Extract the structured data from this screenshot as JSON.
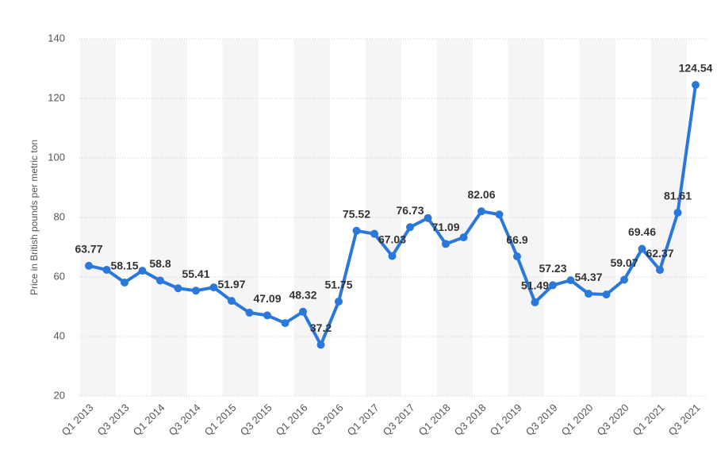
{
  "chart_data": {
    "type": "line",
    "y_label": "Price in British pounds per metric ton",
    "categories": [
      "Q1 2013",
      null,
      "Q3 2013",
      null,
      "Q1 2014",
      null,
      "Q3 2014",
      null,
      "Q1 2015",
      null,
      "Q3 2015",
      null,
      "Q1 2016",
      null,
      "Q3 2016",
      null,
      "Q1 2017",
      null,
      "Q3 2017",
      null,
      "Q1 2018",
      null,
      "Q3 2018",
      null,
      "Q1 2019",
      null,
      "Q3 2019",
      null,
      "Q1 2020",
      null,
      "Q3 2020",
      null,
      "Q1 2021",
      null,
      "Q3 2021"
    ],
    "series": [
      {
        "color": "#2a78dc",
        "values": [
          63.77,
          62.4,
          58.15,
          62.1,
          58.8,
          56.2,
          55.41,
          56.5,
          51.97,
          48.0,
          47.09,
          44.5,
          48.32,
          37.2,
          51.75,
          75.52,
          74.5,
          67.03,
          76.73,
          79.8,
          71.09,
          73.3,
          82.06,
          81.0,
          66.9,
          51.49,
          57.23,
          58.9,
          54.37,
          54.1,
          59.07,
          69.46,
          62.37,
          81.61,
          124.54
        ],
        "value_labels": [
          "63.77",
          null,
          "58.15",
          null,
          "58.8",
          null,
          "55.41",
          null,
          "51.97",
          null,
          "47.09",
          null,
          "48.32",
          "37.2",
          "51.75",
          "75.52",
          null,
          "67.03",
          "76.73",
          null,
          "71.09",
          null,
          "82.06",
          null,
          "66.9",
          "51.49",
          "57.23",
          null,
          "54.37",
          null,
          "59.07",
          "69.46",
          "62.37",
          "81.61",
          "124.54"
        ]
      }
    ],
    "ylim": [
      20,
      140
    ],
    "yticks": [
      20,
      40,
      60,
      80,
      100,
      120,
      140
    ],
    "grid": true
  }
}
